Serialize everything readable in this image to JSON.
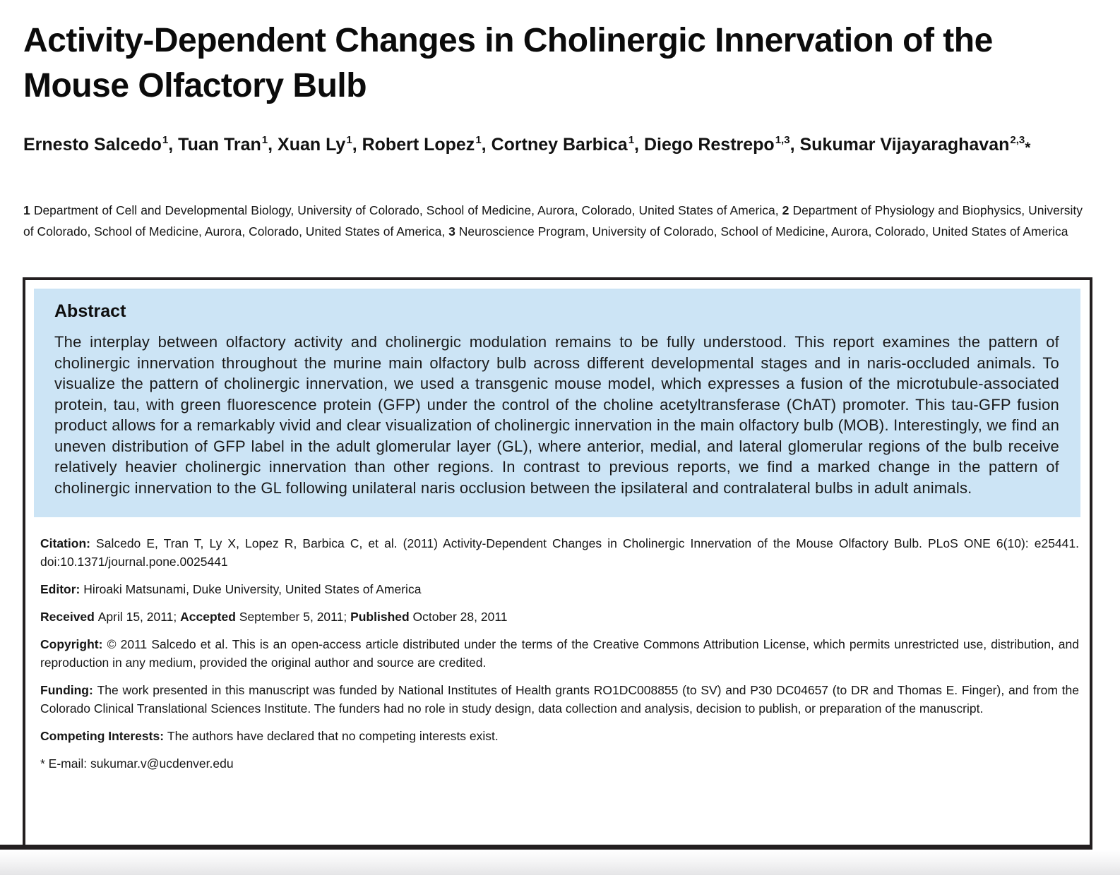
{
  "article": {
    "title": "Activity-Dependent Changes in Cholinergic Innervation of the Mouse Olfactory Bulb",
    "authors": [
      {
        "name": "Ernesto Salcedo",
        "sup": "1",
        "sep": ", "
      },
      {
        "name": "Tuan Tran",
        "sup": "1",
        "sep": ", "
      },
      {
        "name": "Xuan Ly",
        "sup": "1",
        "sep": ", "
      },
      {
        "name": "Robert Lopez",
        "sup": "1",
        "sep": ", "
      },
      {
        "name": "Cortney Barbica",
        "sup": "1",
        "sep": ", "
      },
      {
        "name": "Diego Restrepo",
        "sup": "1,3",
        "sep": ", "
      },
      {
        "name": "Sukumar Vijayaraghavan",
        "sup": "2,3",
        "sep": "",
        "mark": "*"
      }
    ],
    "affiliations": [
      {
        "num": "1",
        "text": "Department of Cell and Developmental Biology, University of Colorado, School of Medicine, Aurora, Colorado, United States of America, "
      },
      {
        "num": "2",
        "text": "Department of Physiology and Biophysics, University of Colorado, School of Medicine, Aurora, Colorado, United States of America, "
      },
      {
        "num": "3",
        "text": "Neuroscience Program, University of Colorado, School of Medicine, Aurora, Colorado, United States of America"
      }
    ]
  },
  "abstract": {
    "heading": "Abstract",
    "text": "The interplay between olfactory activity and cholinergic modulation remains to be fully understood. This report examines the pattern of cholinergic innervation throughout the murine main olfactory bulb across different developmental stages and in naris-occluded animals. To visualize the pattern of cholinergic innervation, we used a transgenic mouse model, which expresses a fusion of the microtubule-associated protein, tau, with green fluorescence protein (GFP) under the control of the choline acetyltransferase (ChAT) promoter. This tau-GFP fusion product allows for a remarkably vivid and clear visualization of cholinergic innervation in the main olfactory bulb (MOB). Interestingly, we find an uneven distribution of GFP label in the adult glomerular layer (GL), where anterior, medial, and lateral glomerular regions of the bulb receive relatively heavier cholinergic innervation than other regions. In contrast to previous reports, we find a marked change in the pattern of cholinergic innervation to the GL following unilateral naris occlusion between the ipsilateral and contralateral bulbs in adult animals."
  },
  "metadata": {
    "paragraphs": [
      {
        "name": "citation",
        "segments": [
          {
            "b": "Citation: "
          },
          {
            "t": "Salcedo E, Tran T, Ly X, Lopez R, Barbica C, et al. (2011) Activity-Dependent Changes in Cholinergic Innervation of the Mouse Olfactory Bulb. PLoS ONE 6(10): e25441. doi:10.1371/journal.pone.0025441"
          }
        ]
      },
      {
        "name": "editor",
        "segments": [
          {
            "b": "Editor: "
          },
          {
            "t": "Hiroaki Matsunami, Duke University, United States of America"
          }
        ]
      },
      {
        "name": "dates",
        "segments": [
          {
            "b": "Received "
          },
          {
            "t": "April 15, 2011; "
          },
          {
            "b": "Accepted "
          },
          {
            "t": "September 5, 2011; "
          },
          {
            "b": "Published "
          },
          {
            "t": "October 28, 2011"
          }
        ]
      },
      {
        "name": "copyright",
        "segments": [
          {
            "b": "Copyright: "
          },
          {
            "t": "© 2011 Salcedo et al. This is an open-access article distributed under the terms of the Creative Commons Attribution License, which permits unrestricted use, distribution, and reproduction in any medium, provided the original author and source are credited."
          }
        ]
      },
      {
        "name": "funding",
        "segments": [
          {
            "b": "Funding: "
          },
          {
            "t": "The work presented in this manuscript was funded by National Institutes of Health grants RO1DC008855 (to SV) and P30 DC04657 (to DR and Thomas E. Finger), and from the Colorado Clinical Translational Sciences Institute. The funders had no role in study design, data collection and analysis, decision to publish, or preparation of the manuscript."
          }
        ]
      },
      {
        "name": "competing-interests",
        "segments": [
          {
            "b": "Competing Interests: "
          },
          {
            "t": "The authors have declared that no competing interests exist."
          }
        ]
      },
      {
        "name": "email",
        "segments": [
          {
            "t": "* E-mail: sukumar.v@ucdenver.edu"
          }
        ]
      }
    ]
  },
  "colors": {
    "abstract_background": "#cce4f5",
    "box_border": "#231f20",
    "text": "#161616"
  }
}
